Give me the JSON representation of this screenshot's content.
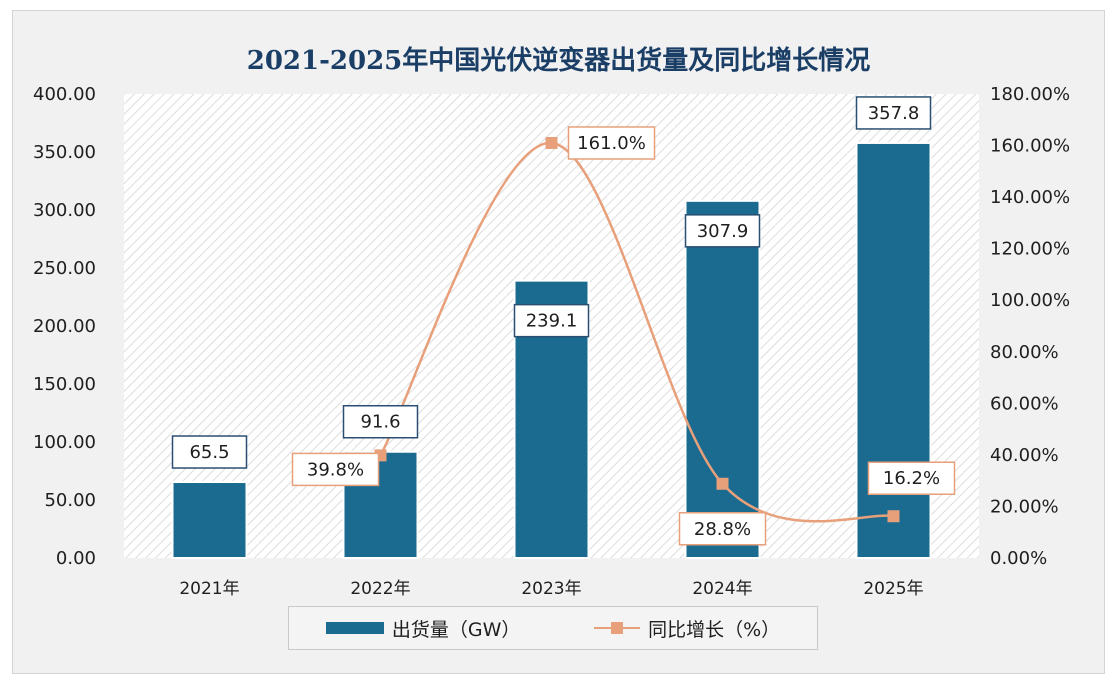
{
  "chart_data": {
    "type": "bar",
    "title": "2021-2025年中国光伏逆变器出货量及同比增长情况",
    "categories": [
      "2021年",
      "2022年",
      "2023年",
      "2024年",
      "2025年"
    ],
    "series": [
      {
        "name": "出货量（GW）",
        "type": "bar",
        "axis": "left",
        "values": [
          65.5,
          91.6,
          239.1,
          307.9,
          357.8
        ],
        "labels": [
          "65.5",
          "91.6",
          "239.1",
          "307.9",
          "357.8"
        ],
        "color": "#1a6b8f"
      },
      {
        "name": "同比增长（%）",
        "type": "line",
        "axis": "right",
        "values": [
          null,
          39.8,
          161.0,
          28.8,
          16.2
        ],
        "labels": [
          "",
          "39.8%",
          "161.0%",
          "28.8%",
          "16.2%"
        ],
        "color": "#e8a07b"
      }
    ],
    "y_left": {
      "range": [
        0,
        400
      ],
      "ticks": [
        "0.00",
        "50.00",
        "100.00",
        "150.00",
        "200.00",
        "250.00",
        "300.00",
        "350.00",
        "400.00"
      ]
    },
    "y_right": {
      "range": [
        0,
        180
      ],
      "ticks": [
        "0.00%",
        "20.00%",
        "40.00%",
        "60.00%",
        "80.00%",
        "100.00%",
        "120.00%",
        "140.00%",
        "160.00%",
        "180.00%"
      ]
    },
    "legend_position": "bottom",
    "grid": false
  }
}
